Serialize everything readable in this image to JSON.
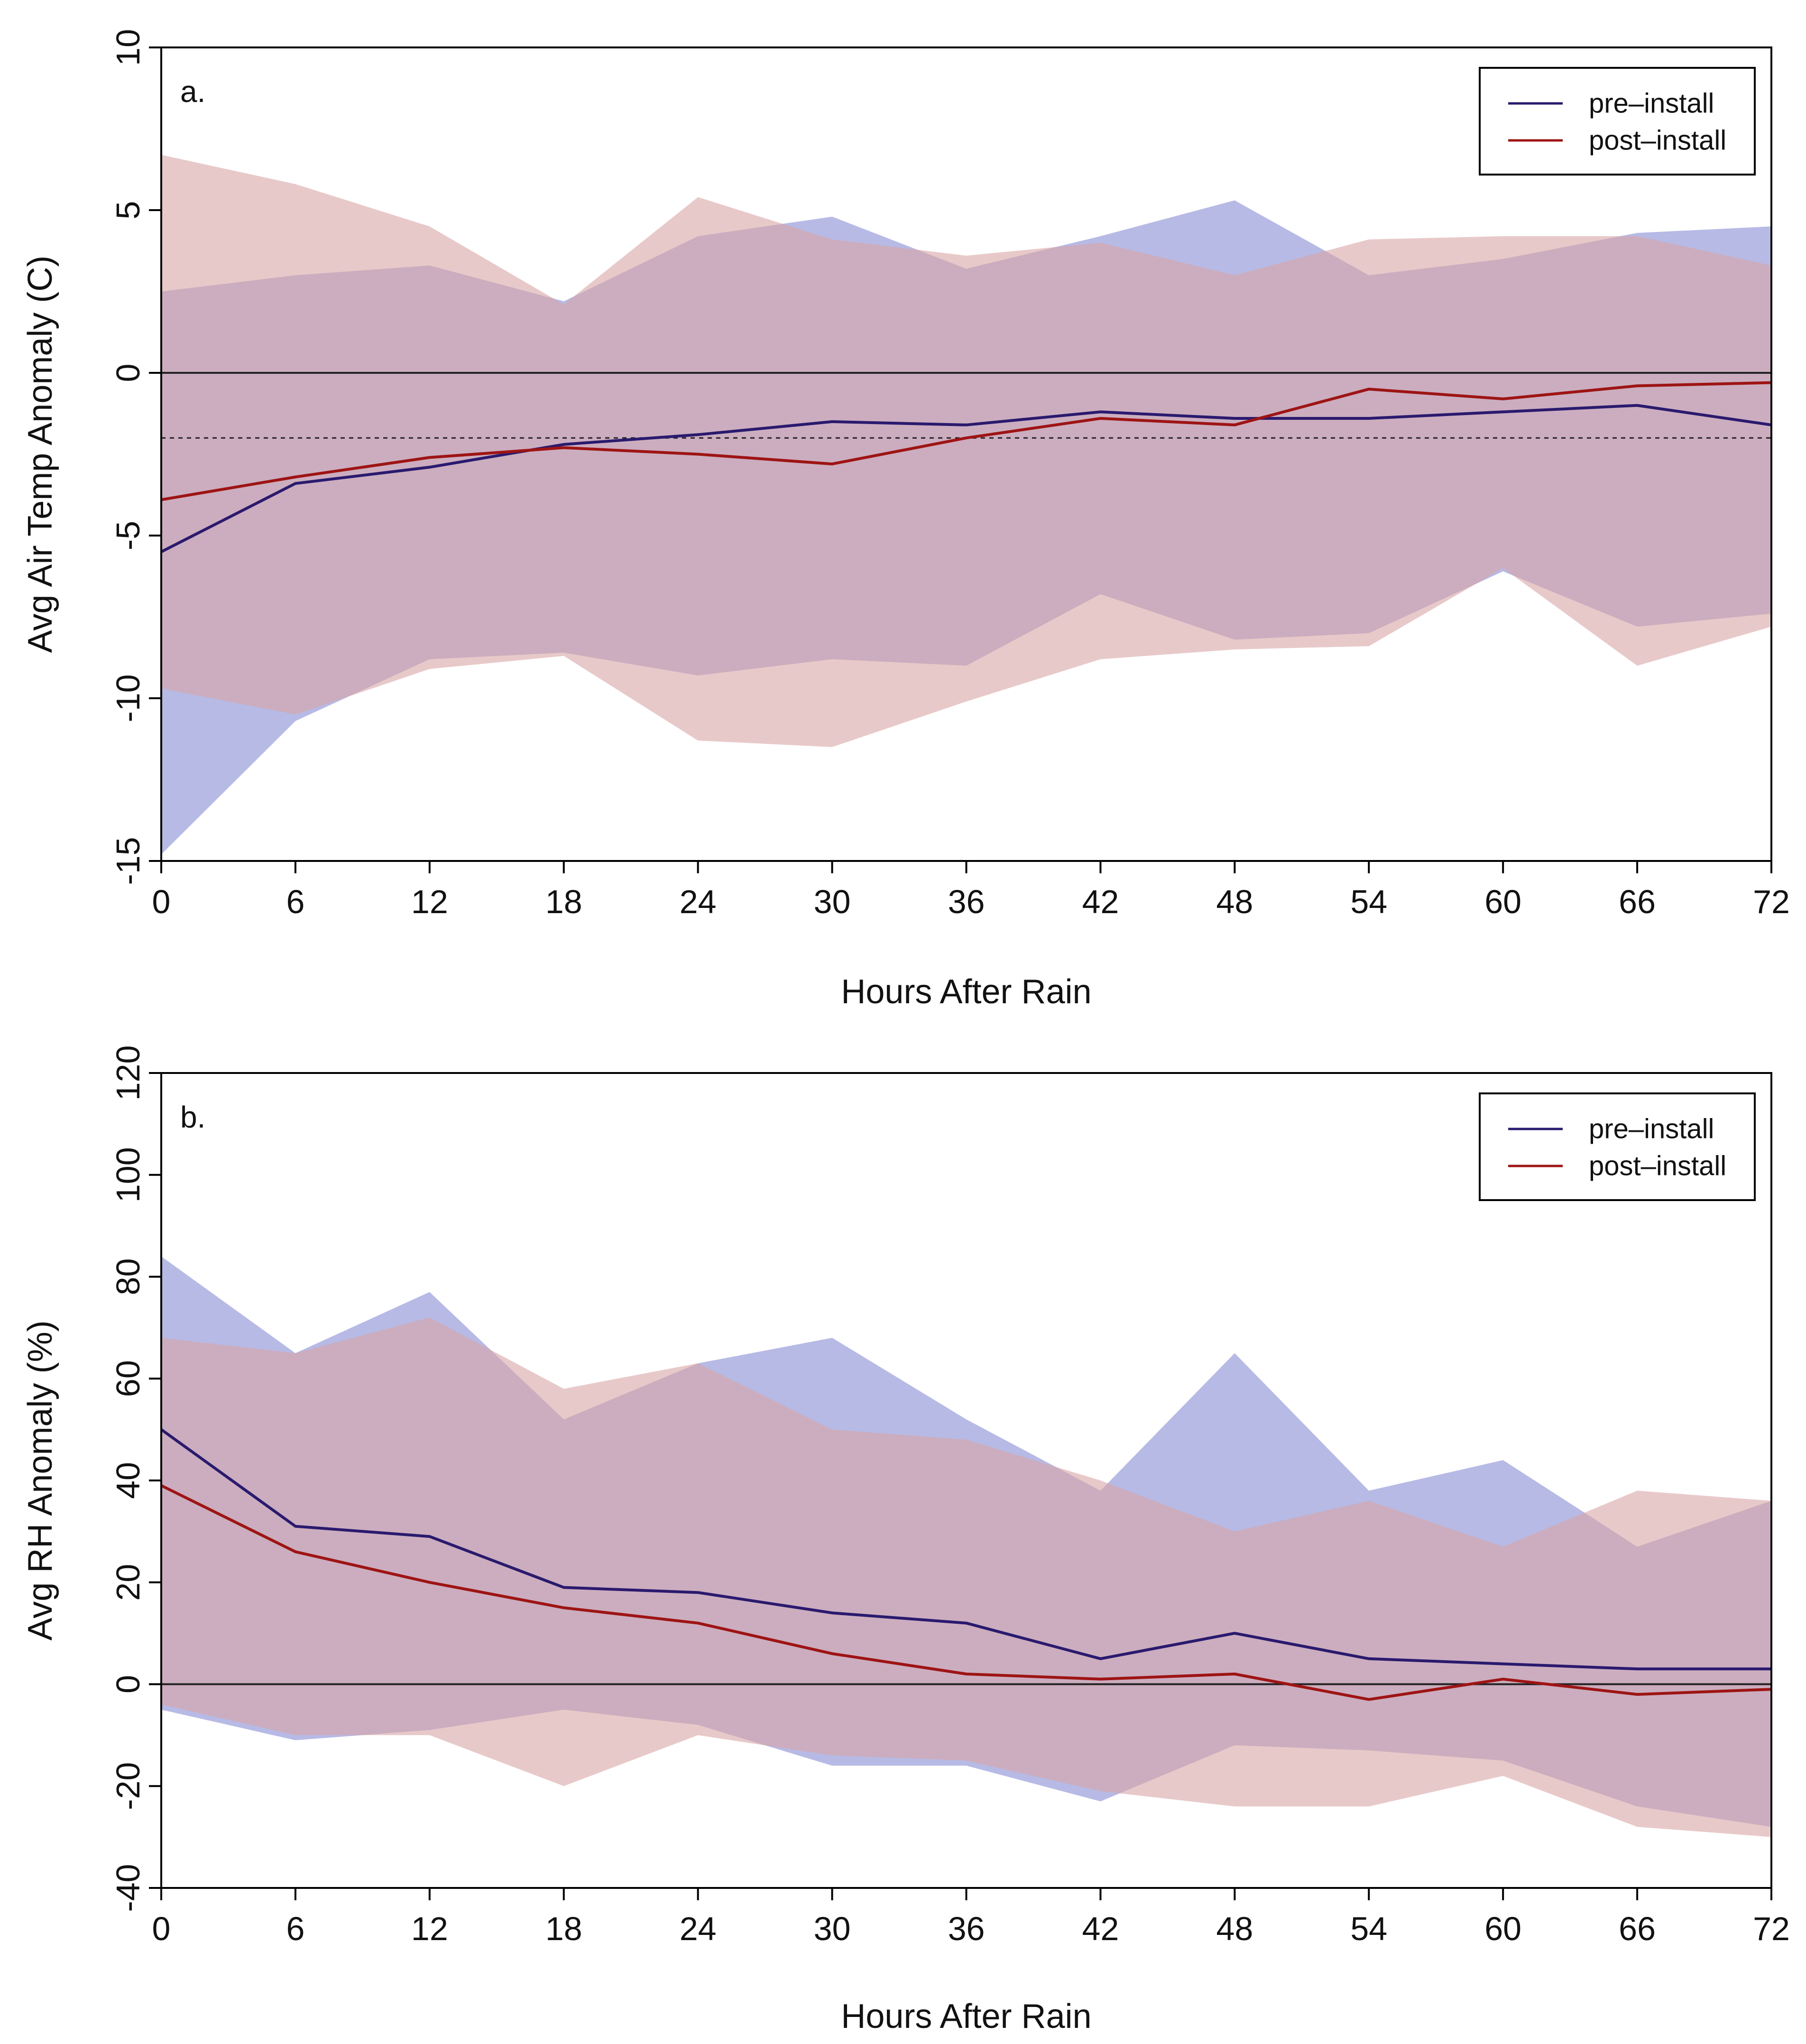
{
  "chart_data": [
    {
      "type": "area",
      "panel_label": "a.",
      "xlabel": "Hours After Rain",
      "ylabel": "Avg Air Temp Anomaly (C)",
      "xlim": [
        0,
        72
      ],
      "ylim": [
        -15,
        10
      ],
      "xticks": [
        0,
        6,
        12,
        18,
        24,
        30,
        36,
        42,
        48,
        54,
        60,
        66,
        72
      ],
      "yticks": [
        -15,
        -10,
        -5,
        0,
        5,
        10
      ],
      "hlines": [
        {
          "y": 0,
          "style": "solid"
        },
        {
          "y": -2,
          "style": "dotted"
        }
      ],
      "legend": {
        "position": "top-right",
        "entries": [
          "pre–install",
          "post–install"
        ]
      },
      "colors": {
        "pre_line": "#2a1a6e",
        "post_line": "#9e1414",
        "pre_band": "#9fa3dc",
        "post_band": "#d9a5a5",
        "overlap": "#a47b96"
      },
      "x": [
        0,
        6,
        12,
        18,
        24,
        30,
        36,
        42,
        48,
        54,
        60,
        66,
        72
      ],
      "series": [
        {
          "name": "pre–install",
          "mean": [
            -5.5,
            -3.4,
            -2.9,
            -2.2,
            -1.9,
            -1.5,
            -1.6,
            -1.2,
            -1.4,
            -1.4,
            -1.2,
            -1.0,
            -1.6
          ],
          "upper": [
            2.5,
            3.0,
            3.3,
            2.2,
            4.2,
            4.8,
            3.2,
            4.2,
            5.3,
            3.0,
            3.5,
            4.3,
            4.5
          ],
          "lower": [
            -14.8,
            -10.7,
            -8.8,
            -8.6,
            -9.3,
            -8.8,
            -9.0,
            -6.8,
            -8.2,
            -8.0,
            -6.1,
            -7.8,
            -7.4
          ]
        },
        {
          "name": "post–install",
          "mean": [
            -3.9,
            -3.2,
            -2.6,
            -2.3,
            -2.5,
            -2.8,
            -2.0,
            -1.4,
            -1.6,
            -0.5,
            -0.8,
            -0.4,
            -0.3
          ],
          "upper": [
            6.7,
            5.8,
            4.5,
            2.1,
            5.4,
            4.1,
            3.6,
            4.0,
            3.0,
            4.1,
            4.2,
            4.2,
            3.3
          ],
          "lower": [
            -9.7,
            -10.5,
            -9.1,
            -8.7,
            -11.3,
            -11.5,
            -10.1,
            -8.8,
            -8.5,
            -8.4,
            -6.0,
            -9.0,
            -7.8
          ]
        }
      ]
    },
    {
      "type": "area",
      "panel_label": "b.",
      "xlabel": "Hours After Rain",
      "ylabel": "Avg RH Anomaly (%)",
      "xlim": [
        0,
        72
      ],
      "ylim": [
        -40,
        120
      ],
      "xticks": [
        0,
        6,
        12,
        18,
        24,
        30,
        36,
        42,
        48,
        54,
        60,
        66,
        72
      ],
      "yticks": [
        -40,
        -20,
        0,
        20,
        40,
        60,
        80,
        100,
        120
      ],
      "hlines": [
        {
          "y": 0,
          "style": "solid"
        }
      ],
      "legend": {
        "position": "top-right",
        "entries": [
          "pre–install",
          "post–install"
        ]
      },
      "colors": {
        "pre_line": "#2a1a6e",
        "post_line": "#9e1414",
        "pre_band": "#9fa3dc",
        "post_band": "#d9a5a5",
        "overlap": "#a47b96"
      },
      "x": [
        0,
        6,
        12,
        18,
        24,
        30,
        36,
        42,
        48,
        54,
        60,
        66,
        72
      ],
      "series": [
        {
          "name": "pre–install",
          "mean": [
            50,
            31,
            29,
            19,
            18,
            14,
            12,
            5,
            10,
            5,
            4,
            3,
            3
          ],
          "upper": [
            84,
            65,
            77,
            52,
            63,
            68,
            52,
            38,
            65,
            38,
            44,
            27,
            36
          ],
          "lower": [
            -5,
            -11,
            -9,
            -5,
            -8,
            -16,
            -16,
            -23,
            -12,
            -13,
            -15,
            -24,
            -28
          ]
        },
        {
          "name": "post–install",
          "mean": [
            39,
            26,
            20,
            15,
            12,
            6,
            2,
            1,
            2,
            -3,
            1,
            -2,
            -1
          ],
          "upper": [
            68,
            65,
            72,
            58,
            63,
            50,
            48,
            40,
            30,
            36,
            27,
            38,
            36
          ],
          "lower": [
            -4,
            -10,
            -10,
            -20,
            -10,
            -14,
            -15,
            -21,
            -24,
            -24,
            -18,
            -28,
            -30
          ]
        }
      ]
    }
  ]
}
